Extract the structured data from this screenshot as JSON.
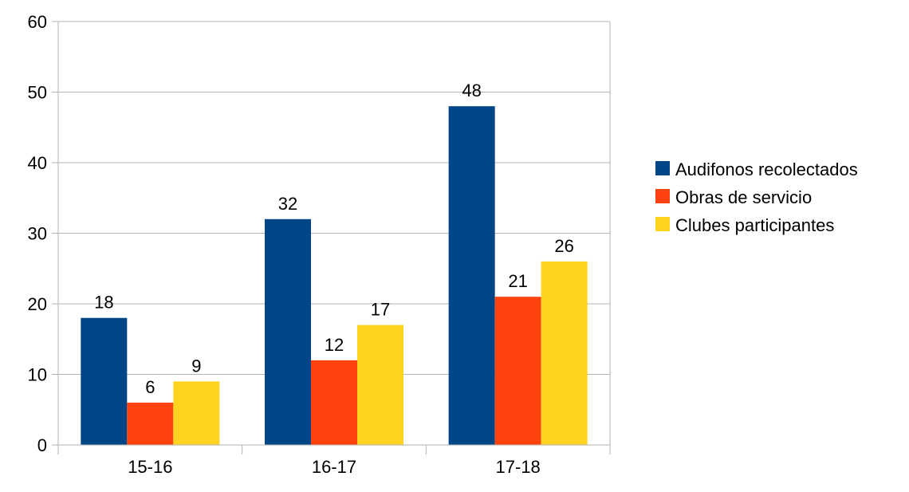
{
  "chart_data": {
    "type": "bar",
    "title": "",
    "xlabel": "",
    "ylabel": "",
    "categories": [
      "15-16",
      "16-17",
      "17-18"
    ],
    "series": [
      {
        "name": "Audifonos recolectados",
        "values": [
          18,
          32,
          48
        ],
        "color": "#004586"
      },
      {
        "name": "Obras de servicio",
        "values": [
          6,
          12,
          21
        ],
        "color": "#ff420e"
      },
      {
        "name": "Clubes participantes",
        "values": [
          9,
          17,
          26
        ],
        "color": "#ffd320"
      }
    ],
    "ylim": [
      0,
      60
    ],
    "yticks": [
      0,
      10,
      20,
      30,
      40,
      50,
      60
    ],
    "grid": true,
    "data_labels": true,
    "legend": "right"
  }
}
